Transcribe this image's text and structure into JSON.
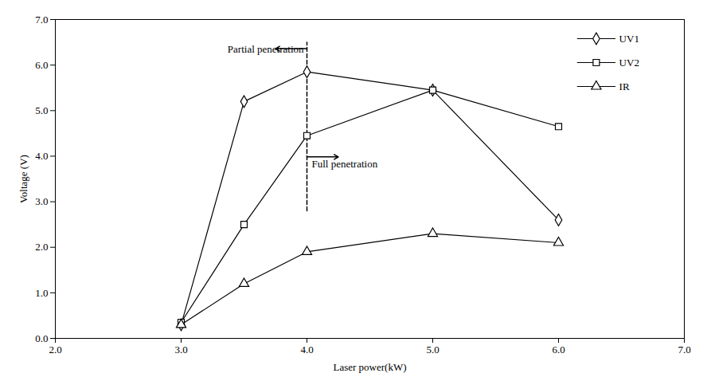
{
  "chart_data": {
    "type": "line",
    "x_label": "Laser power(kW)",
    "y_label": "Voltage (V)",
    "xlim": [
      2,
      7
    ],
    "xticks": [
      2,
      3,
      4,
      5,
      6,
      7
    ],
    "ylim": [
      0,
      7
    ],
    "yticks": [
      0,
      1,
      2,
      3,
      4,
      5,
      6,
      7
    ],
    "grid": false,
    "legend": "top-right",
    "x": [
      3,
      3.5,
      4,
      5,
      6
    ],
    "series": [
      {
        "name": "UV1",
        "color": "#000000",
        "marker": "diamond",
        "values": [
          0.3,
          5.2,
          5.85,
          5.45,
          2.6
        ]
      },
      {
        "name": "UV2",
        "color": "#000000",
        "marker": "square",
        "values": [
          0.35,
          2.5,
          4.45,
          5.45,
          4.65
        ]
      },
      {
        "name": "IR",
        "color": "#000000",
        "marker": "triangle",
        "values": [
          0.3,
          1.2,
          1.9,
          2.3,
          2.1
        ]
      }
    ],
    "reference_line": {
      "x": 4,
      "y": [
        2.8,
        6.5
      ],
      "line_style": "dashed"
    },
    "annotations": [
      "Partial penetration",
      "Full penetration"
    ]
  }
}
